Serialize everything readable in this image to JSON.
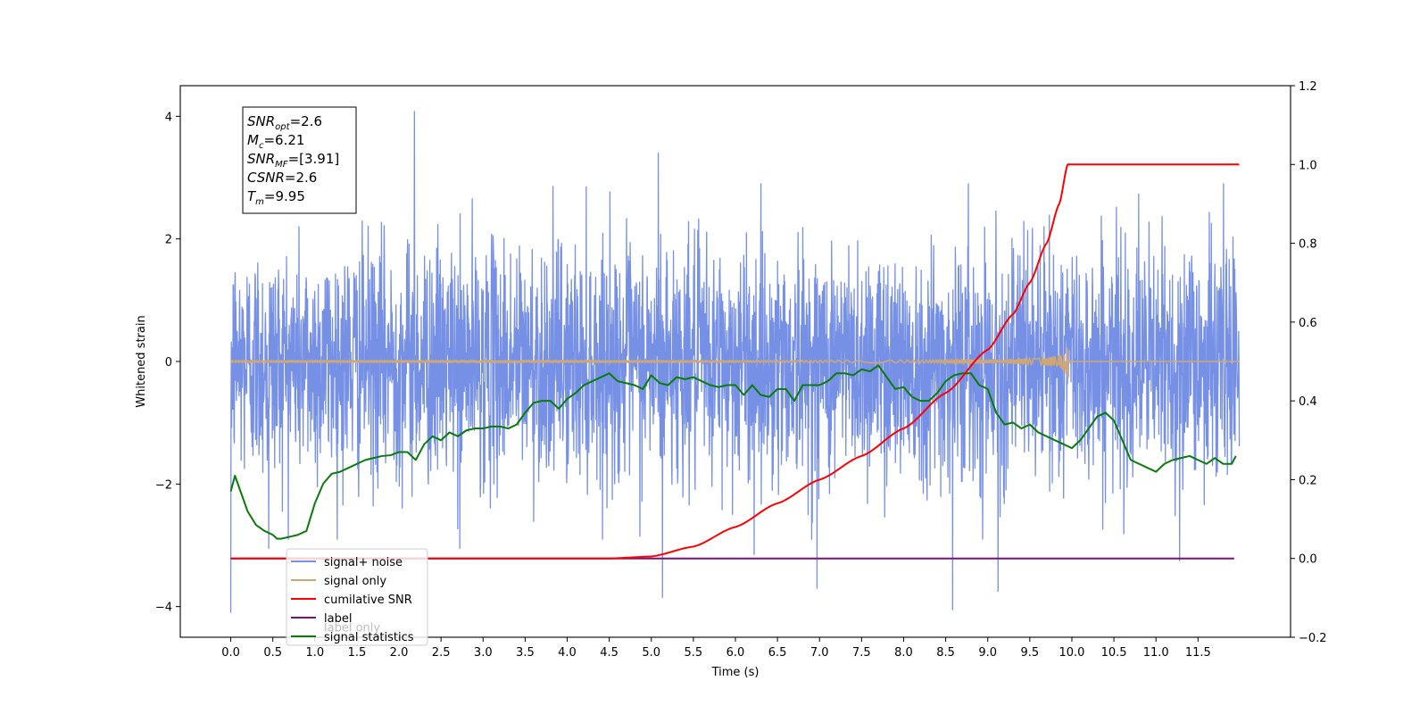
{
  "chart_data": {
    "type": "line",
    "xlabel": "Time (s)",
    "ylabel": "Whitened strain",
    "xlim": [
      -0.6,
      12.6
    ],
    "ylim": [
      -4.5,
      4.5
    ],
    "y2lim": [
      -0.2,
      1.2
    ],
    "x_ticks": [
      0.0,
      0.5,
      1.0,
      1.5,
      2.0,
      2.5,
      3.0,
      3.5,
      4.0,
      4.5,
      5.0,
      5.5,
      6.0,
      6.5,
      7.0,
      7.5,
      8.0,
      8.5,
      9.0,
      9.5,
      10.0,
      10.5,
      11.0,
      11.5
    ],
    "x_tick_labels": [
      "0.0",
      "0.5",
      "1.0",
      "1.5",
      "2.0",
      "2.5",
      "3.0",
      "3.5",
      "4.0",
      "4.5",
      "5.0",
      "5.5",
      "6.0",
      "6.5",
      "7.0",
      "7.5",
      "8.0",
      "8.5",
      "9.0",
      "9.5",
      "10.0",
      "10.5",
      "11.0",
      "11.5"
    ],
    "y_ticks": [
      -4,
      -2,
      0,
      2,
      4
    ],
    "y_tick_labels": [
      "−4",
      "−2",
      "0",
      "2",
      "4"
    ],
    "y2_ticks": [
      -0.2,
      0.0,
      0.2,
      0.4,
      0.6,
      0.8,
      1.0,
      1.2
    ],
    "y2_tick_labels": [
      "−0.2",
      "0.0",
      "0.2",
      "0.4",
      "0.6",
      "0.8",
      "1.0",
      "1.2"
    ],
    "grid": false,
    "legend_position": "bottom-left",
    "annotations": [
      {
        "name": "snr-opt",
        "sym": "SNR",
        "sub": "opt",
        "val": "=2.6"
      },
      {
        "name": "mc",
        "sym": "M",
        "sub": "c",
        "val": "=6.21"
      },
      {
        "name": "snr-mf",
        "sym": "SNR",
        "sub": "MF",
        "val": "=[3.91]"
      },
      {
        "name": "csnr",
        "sym": "CSNR",
        "sub": "",
        "val": "=2.6"
      },
      {
        "name": "tm",
        "sym": "T",
        "sub": "m",
        "val": "=9.95"
      }
    ],
    "series": [
      {
        "name": "signal+ noise",
        "axis": "left",
        "color": "#7690e6",
        "kind": "noise",
        "x_range": [
          0.0,
          11.99
        ],
        "std": 0.95,
        "notable_peaks": [
          [
            2.18,
            4.08
          ],
          [
            0.0,
            -4.1
          ],
          [
            8.58,
            -4.05
          ],
          [
            5.13,
            -3.85
          ],
          [
            6.97,
            -3.7
          ],
          [
            9.12,
            -3.75
          ],
          [
            5.08,
            3.4
          ],
          [
            11.28,
            -3.25
          ],
          [
            6.22,
            -3.15
          ],
          [
            0.45,
            -3.05
          ],
          [
            2.72,
            -3.05
          ],
          [
            11.8,
            2.9
          ]
        ]
      },
      {
        "name": "signal only",
        "axis": "left",
        "color": "#cfa776",
        "kind": "chirp",
        "x_range": [
          0.0,
          11.99
        ],
        "merger_time": 9.95,
        "max_amplitude": 0.28
      },
      {
        "name": "cumilative SNR",
        "axis": "right",
        "color": "#ff0000",
        "x": [
          0.0,
          4.5,
          5.0,
          5.5,
          6.0,
          6.5,
          7.0,
          7.5,
          8.0,
          8.5,
          9.0,
          9.3,
          9.5,
          9.7,
          9.85,
          9.95,
          11.99
        ],
        "values": [
          0.0,
          0.0,
          0.005,
          0.03,
          0.08,
          0.14,
          0.2,
          0.26,
          0.33,
          0.42,
          0.53,
          0.62,
          0.7,
          0.8,
          0.9,
          1.0,
          1.0
        ]
      },
      {
        "name": "label",
        "axis": "right",
        "color": "#7d0e7d",
        "x": [
          0.0,
          11.93
        ],
        "values": [
          0.0,
          0.0
        ]
      },
      {
        "name": "label only",
        "axis": "right",
        "color": "#bdbdbd",
        "x": [],
        "values": []
      },
      {
        "name": "signal statistics",
        "axis": "right",
        "color": "#0a7a0a",
        "x": [
          0.0,
          0.05,
          0.1,
          0.2,
          0.3,
          0.4,
          0.5,
          0.55,
          0.6,
          0.7,
          0.8,
          0.9,
          1.0,
          1.1,
          1.2,
          1.3,
          1.4,
          1.5,
          1.6,
          1.7,
          1.8,
          1.9,
          2.0,
          2.1,
          2.2,
          2.3,
          2.4,
          2.5,
          2.6,
          2.7,
          2.8,
          2.9,
          3.0,
          3.1,
          3.2,
          3.3,
          3.4,
          3.5,
          3.6,
          3.7,
          3.8,
          3.9,
          4.0,
          4.1,
          4.2,
          4.3,
          4.4,
          4.5,
          4.6,
          4.7,
          4.8,
          4.9,
          5.0,
          5.1,
          5.2,
          5.3,
          5.4,
          5.5,
          5.6,
          5.7,
          5.8,
          5.9,
          6.0,
          6.1,
          6.2,
          6.3,
          6.4,
          6.5,
          6.6,
          6.7,
          6.8,
          6.9,
          7.0,
          7.1,
          7.2,
          7.3,
          7.4,
          7.5,
          7.6,
          7.7,
          7.8,
          7.9,
          8.0,
          8.1,
          8.2,
          8.3,
          8.4,
          8.5,
          8.6,
          8.7,
          8.8,
          8.9,
          9.0,
          9.1,
          9.2,
          9.3,
          9.4,
          9.5,
          9.6,
          9.7,
          9.8,
          9.9,
          10.0,
          10.1,
          10.2,
          10.3,
          10.4,
          10.5,
          10.6,
          10.7,
          10.8,
          10.9,
          11.0,
          11.1,
          11.2,
          11.3,
          11.4,
          11.5,
          11.6,
          11.7,
          11.8,
          11.9,
          11.95
        ],
        "values": [
          0.17,
          0.21,
          0.18,
          0.12,
          0.085,
          0.07,
          0.06,
          0.05,
          0.05,
          0.055,
          0.06,
          0.07,
          0.14,
          0.19,
          0.215,
          0.22,
          0.23,
          0.24,
          0.25,
          0.255,
          0.26,
          0.262,
          0.27,
          0.27,
          0.25,
          0.29,
          0.31,
          0.3,
          0.32,
          0.31,
          0.325,
          0.33,
          0.33,
          0.335,
          0.335,
          0.33,
          0.34,
          0.37,
          0.395,
          0.4,
          0.4,
          0.38,
          0.405,
          0.42,
          0.44,
          0.45,
          0.46,
          0.47,
          0.45,
          0.445,
          0.44,
          0.43,
          0.465,
          0.445,
          0.44,
          0.46,
          0.455,
          0.46,
          0.45,
          0.44,
          0.435,
          0.44,
          0.44,
          0.415,
          0.44,
          0.415,
          0.41,
          0.43,
          0.43,
          0.4,
          0.44,
          0.44,
          0.44,
          0.45,
          0.47,
          0.47,
          0.465,
          0.48,
          0.475,
          0.49,
          0.46,
          0.43,
          0.435,
          0.41,
          0.4,
          0.4,
          0.42,
          0.45,
          0.465,
          0.47,
          0.47,
          0.44,
          0.43,
          0.37,
          0.34,
          0.345,
          0.33,
          0.34,
          0.32,
          0.31,
          0.3,
          0.29,
          0.28,
          0.3,
          0.33,
          0.36,
          0.37,
          0.35,
          0.3,
          0.25,
          0.24,
          0.23,
          0.22,
          0.24,
          0.25,
          0.255,
          0.26,
          0.25,
          0.24,
          0.255,
          0.24,
          0.24,
          0.26
        ]
      }
    ]
  }
}
